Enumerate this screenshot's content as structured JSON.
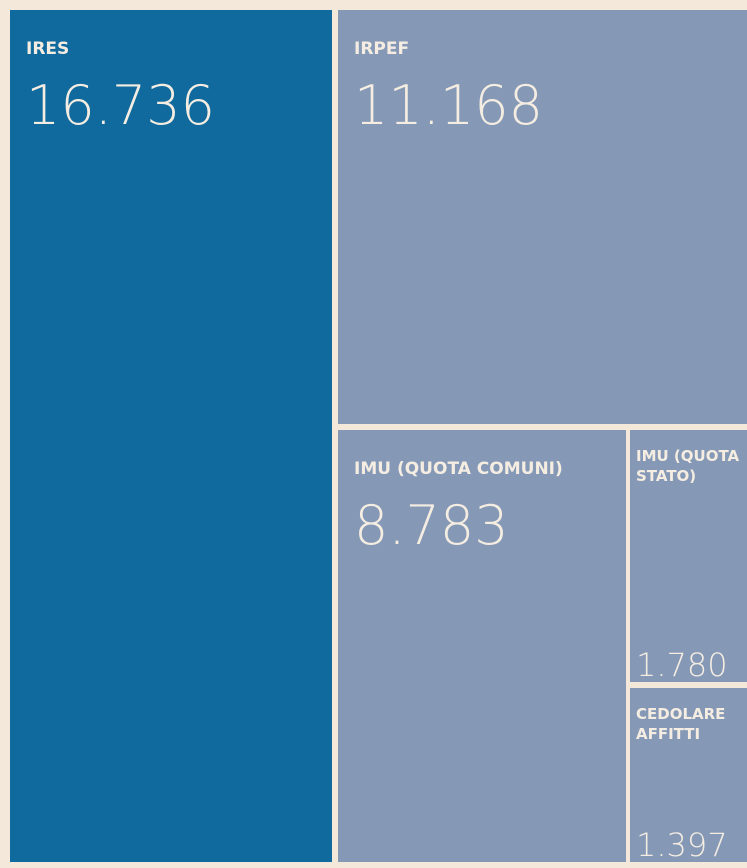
{
  "chart_data": {
    "type": "treemap",
    "categories": [
      "IRES",
      "IRPEF",
      "IMU (QUOTA COMUNI)",
      "IMU (QUOTA STATO)",
      "CEDOLARE AFFITTI"
    ],
    "values": [
      16736,
      11168,
      8783,
      1780,
      1397
    ],
    "value_labels": [
      "16.736",
      "11.168",
      "8.783",
      "1.780",
      "1.397"
    ],
    "colors": [
      "#106a9d",
      "#8599b6",
      "#8599b6",
      "#8599b6",
      "#8599b6"
    ]
  }
}
